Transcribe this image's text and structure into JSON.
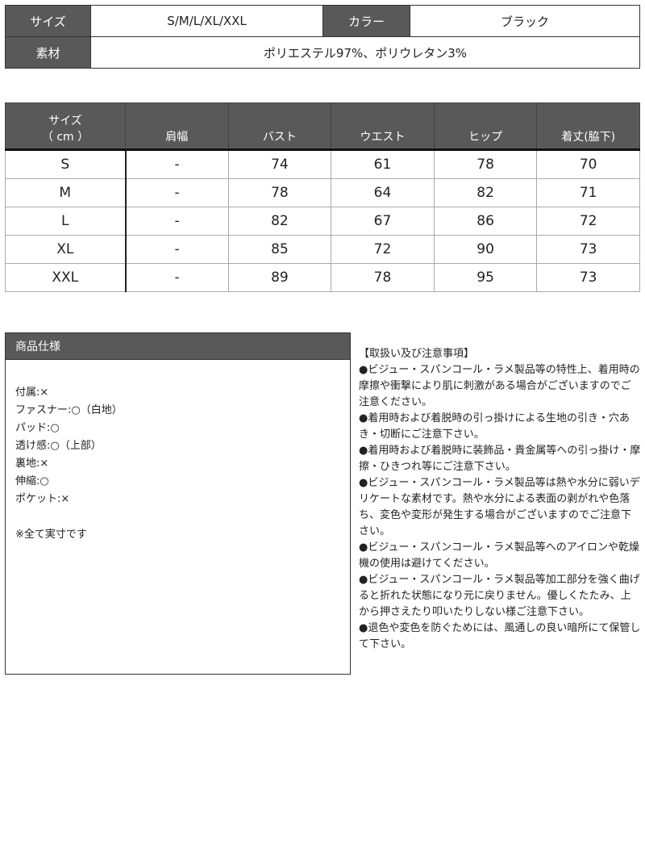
{
  "info": {
    "size_label": "サイズ",
    "size_value": "S/M/L/XL/XXL",
    "color_label": "カラー",
    "color_value": "ブラック",
    "material_label": "素材",
    "material_value": "ポリエステル97%、ポリウレタン3%"
  },
  "size_table": {
    "headers": [
      "サイズ",
      "（ cm ）",
      "肩幅",
      "バスト",
      "ウエスト",
      "ヒップ",
      "着丈(脇下)"
    ],
    "rows": [
      [
        "S",
        "-",
        "74",
        "61",
        "78",
        "70"
      ],
      [
        "M",
        "-",
        "78",
        "64",
        "82",
        "71"
      ],
      [
        "L",
        "-",
        "82",
        "67",
        "86",
        "72"
      ],
      [
        "XL",
        "-",
        "85",
        "72",
        "90",
        "73"
      ],
      [
        "XXL",
        "-",
        "89",
        "78",
        "95",
        "73"
      ]
    ]
  },
  "spec": {
    "title": "商品仕様",
    "lines": [
      "付属:×",
      "ファスナー:○（白地）",
      "パッド:○",
      "透け感:○（上部）",
      "裏地:×",
      "伸縮:○",
      "ポケット:×"
    ],
    "note": "※全て実寸です"
  },
  "notes": {
    "title": "【取扱い及び注意事項】",
    "items": [
      "●ビジュー・スパンコール・ラメ製品等の特性上、着用時の摩擦や衝撃により肌に刺激がある場合がございますのでご注意ください。",
      "●着用時および着脱時の引っ掛けによる生地の引き・穴あき・切断にご注意下さい。",
      "●着用時および着脱時に装飾品・貴金属等への引っ掛け・摩擦・ひきつれ等にご注意下さい。",
      "●ビジュー・スパンコール・ラメ製品等は熱や水分に弱いデリケートな素材です。熱や水分による表面の剥がれや色落ち、変色や変形が発生する場合がございますのでご注意下さい。",
      "●ビジュー・スパンコール・ラメ製品等へのアイロンや乾燥機の使用は避けてください。",
      "●ビジュー・スパンコール・ラメ製品等加工部分を強く曲げると折れた状態になり元に戻りません。優しくたたみ、上から押さえたり叩いたりしない様ご注意下さい。",
      "●退色や変色を防ぐためには、風通しの良い暗所にて保管して下さい。"
    ]
  },
  "colors": {
    "header_bg": "#595959"
  }
}
